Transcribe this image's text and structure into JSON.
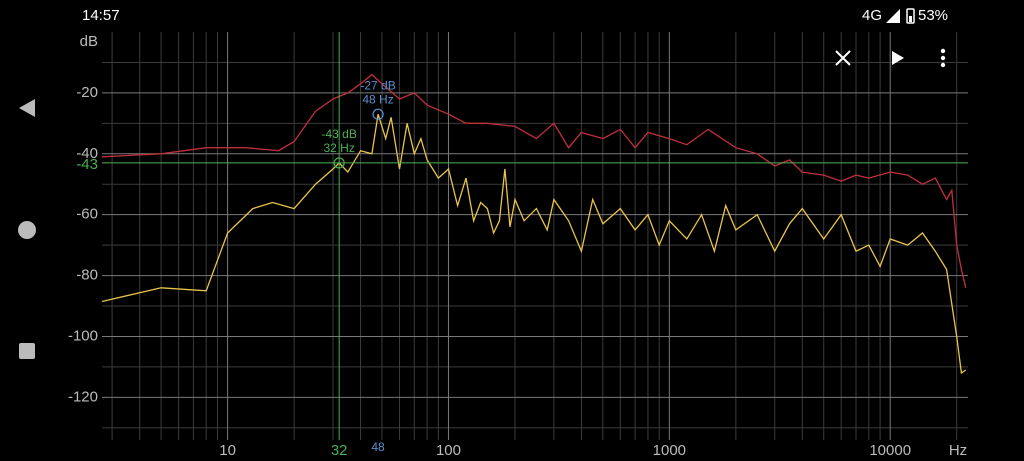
{
  "status_bar": {
    "time": "14:57",
    "network": "4G",
    "battery": "53%"
  },
  "chart_data": {
    "type": "line",
    "x_scale": "log",
    "xlabel": "Hz",
    "ylabel": "dB",
    "xlim": [
      2.7,
      22500
    ],
    "ylim": [
      -134,
      0
    ],
    "xticks": [
      10,
      100,
      1000,
      10000
    ],
    "yticks": [
      -20,
      -40,
      -60,
      -80,
      -100,
      -120
    ],
    "xgrid_minor": [
      3,
      4,
      5,
      6,
      7,
      8,
      9,
      20,
      30,
      40,
      50,
      60,
      70,
      80,
      90,
      200,
      300,
      400,
      500,
      600,
      700,
      800,
      900,
      2000,
      3000,
      4000,
      5000,
      6000,
      7000,
      8000,
      9000,
      20000
    ],
    "ygrid_minor": [
      -10,
      -30,
      -50,
      -70,
      -90,
      -110,
      -130
    ],
    "series": [
      {
        "color": "#c0303c",
        "x": [
          2.7,
          5,
          8,
          12,
          17,
          20,
          25,
          30,
          35,
          40,
          45,
          50,
          60,
          70,
          80,
          100,
          120,
          150,
          200,
          250,
          300,
          350,
          400,
          500,
          600,
          700,
          800,
          1000,
          1200,
          1500,
          2000,
          2500,
          3000,
          3500,
          4000,
          5000,
          6000,
          7000,
          8000,
          10000,
          12000,
          14000,
          16000,
          18000,
          19000,
          20000,
          21000,
          22000
        ],
        "values": [
          -41,
          -40,
          -38,
          -38,
          -39,
          -36,
          -26,
          -22,
          -20,
          -17,
          -14,
          -17,
          -22,
          -20,
          -24,
          -27,
          -30,
          -30,
          -31,
          -35,
          -30,
          -38,
          -33,
          -35,
          -32,
          -38,
          -33,
          -35,
          -37,
          -32,
          -38,
          -40,
          -44,
          -42,
          -46,
          -47,
          -49,
          -47,
          -48,
          -46,
          -47,
          -50,
          -48,
          -55,
          -52,
          -70,
          -78,
          -84
        ]
      },
      {
        "color": "#e8c44a",
        "x": [
          2.7,
          5,
          8,
          10,
          13,
          16,
          20,
          25,
          30,
          32,
          35,
          40,
          45,
          48,
          52,
          55,
          60,
          65,
          70,
          75,
          80,
          90,
          100,
          110,
          120,
          130,
          140,
          150,
          160,
          170,
          180,
          190,
          200,
          220,
          250,
          280,
          300,
          350,
          400,
          450,
          500,
          600,
          700,
          800,
          900,
          1000,
          1200,
          1400,
          1600,
          1800,
          2000,
          2500,
          3000,
          3500,
          4000,
          5000,
          6000,
          7000,
          8000,
          9000,
          10000,
          12000,
          14000,
          16000,
          18000,
          20000,
          21000,
          22000
        ],
        "values": [
          -88.5,
          -84,
          -85,
          -66,
          -58,
          -56,
          -58,
          -50,
          -45,
          -43,
          -46,
          -39,
          -40,
          -27,
          -35,
          -28,
          -45,
          -30,
          -40,
          -35,
          -42,
          -48,
          -45,
          -57,
          -48,
          -62,
          -56,
          -58,
          -66,
          -62,
          -45,
          -64,
          -55,
          -62,
          -58,
          -65,
          -55,
          -62,
          -72,
          -55,
          -63,
          -58,
          -65,
          -60,
          -70,
          -62,
          -68,
          -60,
          -72,
          -57,
          -65,
          -60,
          -72,
          -63,
          -58,
          -68,
          -60,
          -72,
          -70,
          -77,
          -68,
          -70,
          -66,
          -72,
          -78,
          -100,
          -112,
          -111
        ]
      }
    ],
    "cursors": [
      {
        "x": 32,
        "y": -43,
        "label_y": "-43 dB",
        "label_x": "32 Hz",
        "color": "#4caf50"
      },
      {
        "x": 48,
        "y": -27,
        "label_y": "-27 dB",
        "label_x": "48 Hz",
        "color": "#5b8fd0"
      }
    ]
  }
}
